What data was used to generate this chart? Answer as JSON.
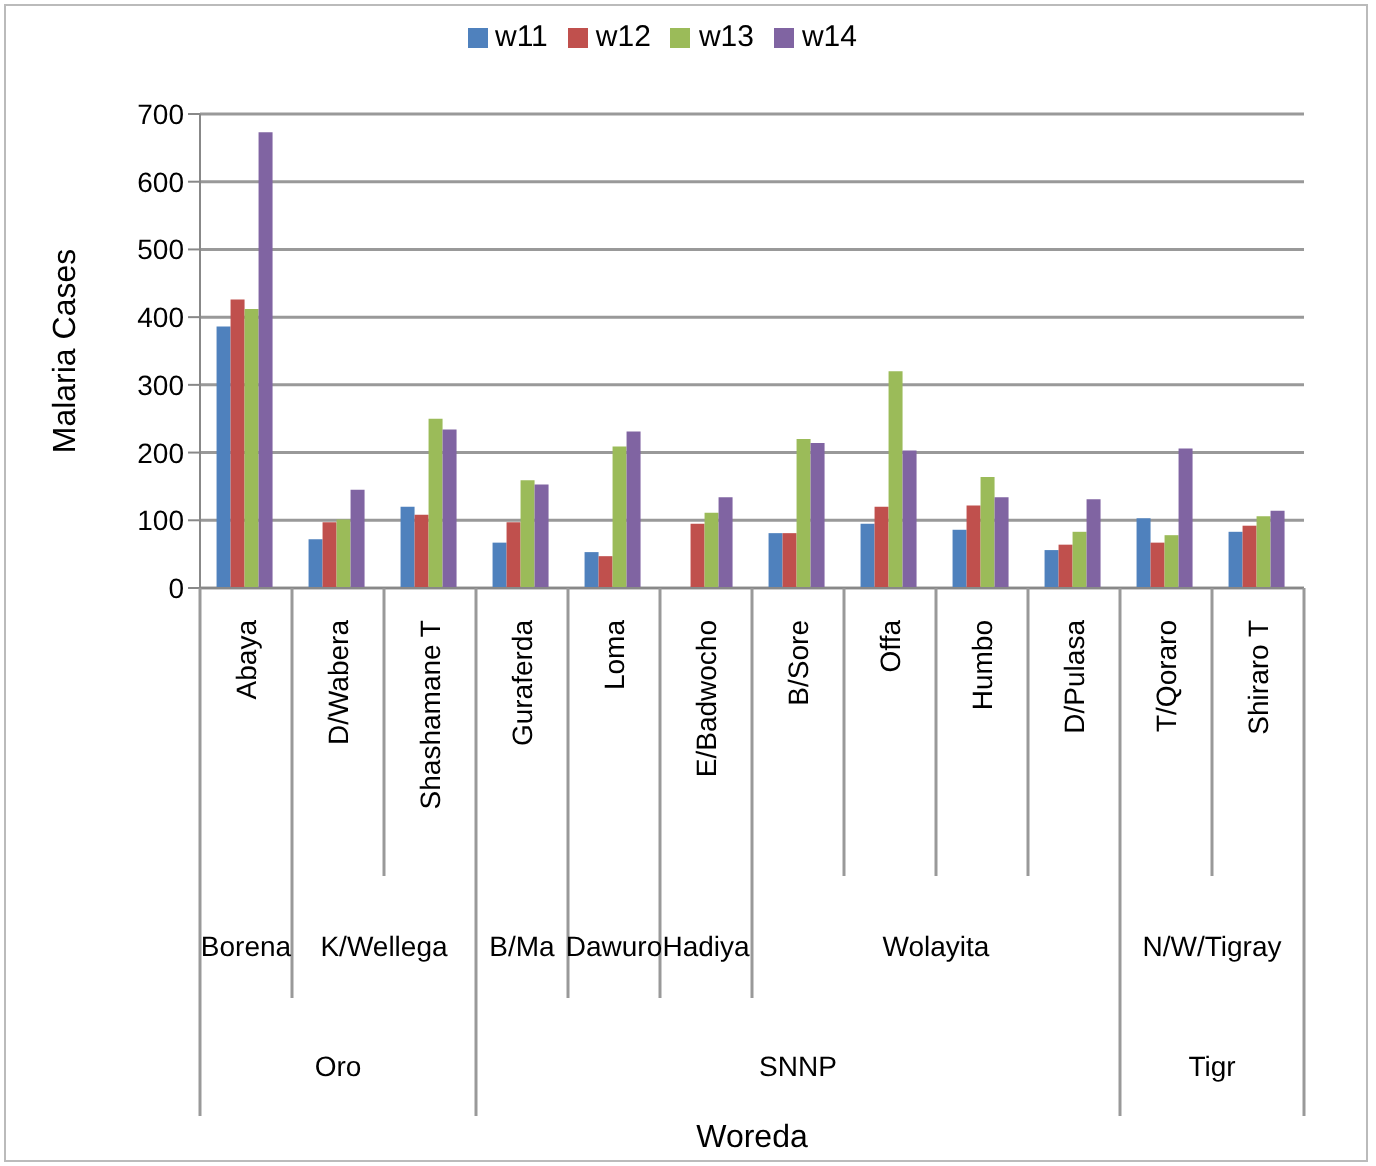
{
  "chart_data": {
    "type": "bar",
    "ylabel": "Malaria Cases",
    "categories": [
      "Abaya",
      "D/Wabera",
      "Shashamane T",
      "Guraferda",
      "Loma",
      "E/Badwocho",
      "B/Sore",
      "Offa",
      "Humbo",
      "D/Pulasa",
      "T/Qoraro",
      "Shiraro T"
    ],
    "series": [
      {
        "name": "w11",
        "color": "#4f81bd",
        "values": [
          386,
          72,
          120,
          67,
          53,
          null,
          81,
          95,
          86,
          56,
          103,
          83
        ]
      },
      {
        "name": "w12",
        "color": "#c0504d",
        "values": [
          426,
          97,
          108,
          97,
          47,
          95,
          81,
          120,
          122,
          64,
          67,
          92
        ]
      },
      {
        "name": "w13",
        "color": "#9bbb59",
        "values": [
          412,
          101,
          250,
          159,
          209,
          111,
          220,
          320,
          164,
          83,
          78,
          106
        ]
      },
      {
        "name": "w14",
        "color": "#8064a2",
        "values": [
          673,
          145,
          234,
          153,
          231,
          134,
          214,
          203,
          134,
          131,
          206,
          114
        ]
      }
    ],
    "ylim": [
      0,
      700
    ],
    "yticks": [
      0,
      100,
      200,
      300,
      400,
      500,
      600,
      700
    ],
    "grid": "y",
    "legend": "top",
    "annotations": [
      "Borena",
      "K/Wellega",
      "B/Ma",
      "Dawuro",
      "Hadiya",
      "Wolayita",
      "N/W/Tigray",
      "Oro",
      "SNNP",
      "Tigr",
      "Woreda"
    ]
  }
}
